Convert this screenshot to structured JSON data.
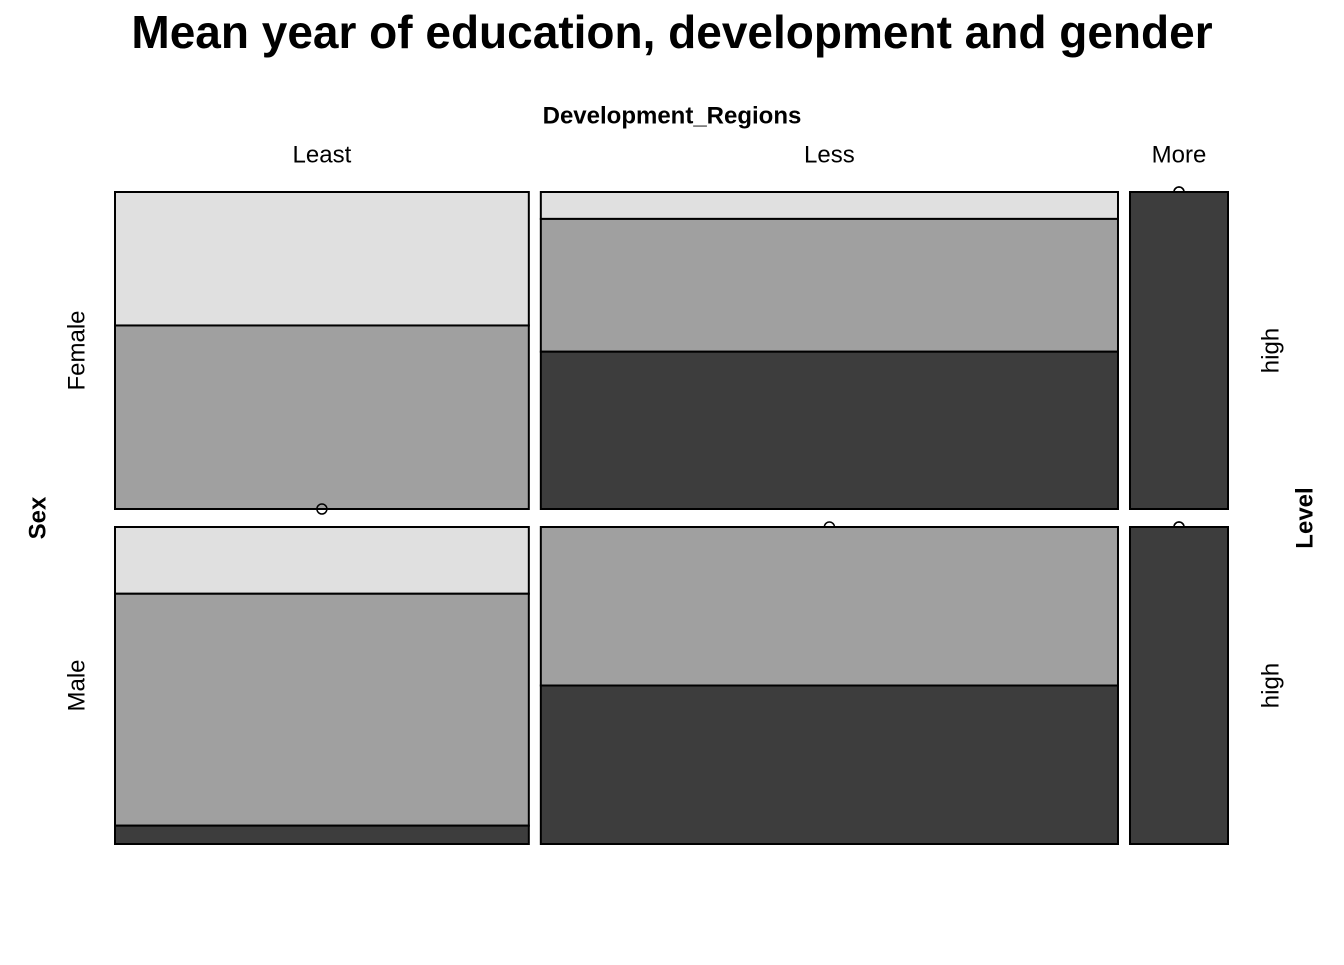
{
  "chart_data": {
    "type": "mosaic",
    "title": "Mean year of education, development and gender",
    "x_label": "Development_Regions",
    "y_label": "Sex",
    "z_label": "Level",
    "categories": [
      "Least",
      "Less",
      "More"
    ],
    "rows": [
      "Female",
      "Male"
    ],
    "series": [
      {
        "name": null,
        "color": "#e0e0e0",
        "values": [
          [
            8,
            4
          ],
          [
            2.25,
            0
          ],
          [
            0,
            0
          ]
        ]
      },
      {
        "name": null,
        "color": "#a0a0a0",
        "values": [
          [
            11,
            13.9
          ],
          [
            11.1,
            13.25
          ],
          [
            0,
            0
          ]
        ]
      },
      {
        "name": "high",
        "color": "#3d3d3d",
        "values": [
          [
            0,
            1.1
          ],
          [
            13.15,
            13.25
          ],
          [
            4.5,
            4.5
          ]
        ]
      }
    ]
  }
}
